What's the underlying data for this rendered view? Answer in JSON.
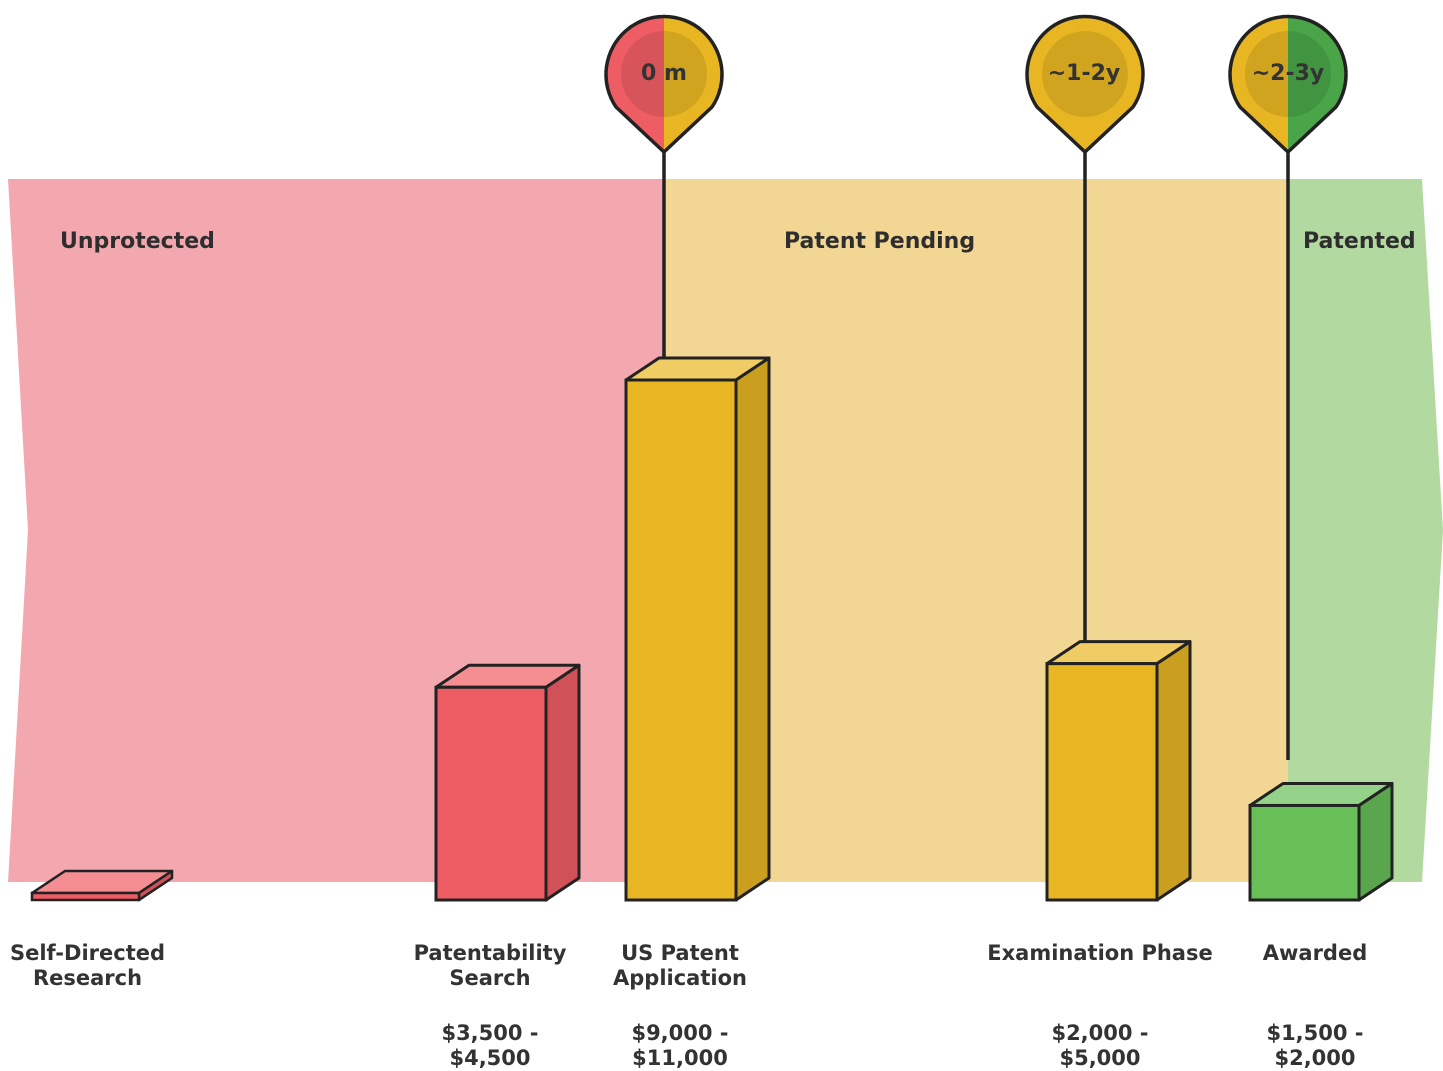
{
  "chart_data": {
    "type": "bar",
    "title": "",
    "xlabel": "",
    "ylabel": "",
    "zones": [
      {
        "label": "Unprotected",
        "color": "#f3a8b0"
      },
      {
        "label": "Patent Pending",
        "color": "#f2d693"
      },
      {
        "label": "Patented",
        "color": "#b2d9a0"
      }
    ],
    "categories": [
      "Self-Directed\nResearch",
      "Patentability\nSearch",
      "US Patent\nApplication",
      "Examination Phase",
      "Awarded"
    ],
    "cost_labels": [
      "",
      "$3,500 - $4,500",
      "$9,000 - $11,000",
      "$2,000 - $5,000",
      "$1,500 - $2,000"
    ],
    "values_low": [
      0,
      3500,
      9000,
      2000,
      1500
    ],
    "values_high": [
      0,
      4500,
      11000,
      5000,
      2000
    ],
    "bar_colors": [
      "#ef5d64",
      "#ef5d64",
      "#e8b622",
      "#e8b622",
      "#68bf57"
    ],
    "milestones": [
      {
        "label": "0 m",
        "left_color": "#ef5d64",
        "right_color": "#e8b622"
      },
      {
        "label": "~1-2y",
        "left_color": "#e8b622",
        "right_color": "#e8b622"
      },
      {
        "label": "~2-3y",
        "left_color": "#e8b622",
        "right_color": "#49a547"
      }
    ]
  }
}
